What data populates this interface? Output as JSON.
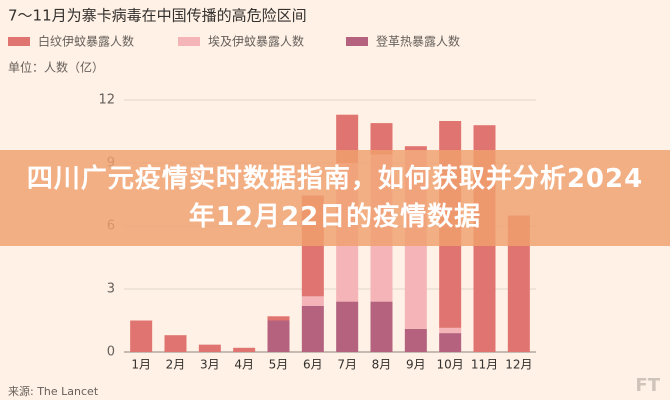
{
  "chart_data": {
    "type": "bar",
    "stacked": true,
    "title": "7～11月为寨卡病毒在中国传播的高危险区间",
    "unit_label": "单位：人数（亿）",
    "source": "来源: The Lancet",
    "logo": "FT",
    "categories": [
      "1月",
      "2月",
      "3月",
      "4月",
      "5月",
      "6月",
      "7月",
      "8月",
      "9月",
      "10月",
      "11月",
      "12月"
    ],
    "series": [
      {
        "name": "白纹伊蚊暴露人数",
        "color": "#e07470",
        "values": [
          1.5,
          0.8,
          0.35,
          0.2,
          0.2,
          4.8,
          2.3,
          1.5,
          0.2,
          9.85,
          10.8,
          6.5
        ]
      },
      {
        "name": "埃及伊蚊暴露人数",
        "color": "#f4b4b8",
        "values": [
          0,
          0,
          0,
          0,
          0,
          0.45,
          6.6,
          7,
          8.5,
          0.25,
          0,
          0
        ]
      },
      {
        "name": "登革热暴露人数",
        "color": "#b4627e",
        "values": [
          0,
          0,
          0,
          0,
          1.5,
          2.2,
          2.4,
          2.4,
          1.1,
          0.9,
          0,
          0
        ]
      }
    ],
    "ylim": [
      0,
      12.6
    ],
    "yticks": [
      0,
      3,
      6,
      9,
      12
    ],
    "grid": true
  },
  "overlay_headline": "四川广元疫情实时数据指南，如何获取并分析2024年12月22日的疫情数据"
}
